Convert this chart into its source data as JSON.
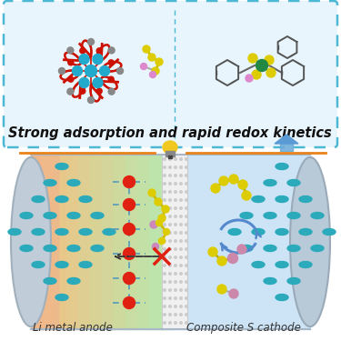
{
  "title": "Strong adsorption and rapid redox kinetics",
  "label_anode": "Li metal anode",
  "label_cathode": "Composite S cathode",
  "bg_color": "#ffffff",
  "box_color": "#4db8d4",
  "teal_ellipse_color": "#2aaabb",
  "red_dot_color": "#e02010",
  "cross_color": "#e02010",
  "orange_line_color": "#e8821a",
  "blue_arrow_color": "#5b9bd5",
  "title_fontsize": 10.5,
  "label_fontsize": 8.5
}
